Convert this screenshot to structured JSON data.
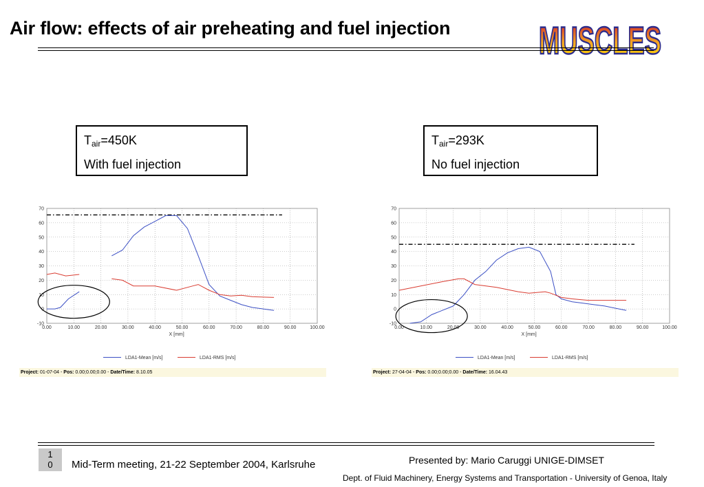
{
  "slide": {
    "title": "Air flow: effects of air preheating and fuel injection",
    "logo_text": "MUSCLES"
  },
  "conditions": [
    {
      "t_main": "T",
      "t_sub": "air",
      "t_value": "=450K",
      "note": "With fuel injection"
    },
    {
      "t_main": "T",
      "t_sub": "air",
      "t_value": "=293K",
      "note": "No fuel injection"
    }
  ],
  "chart_data": [
    {
      "type": "line",
      "xlabel": "X [mm]",
      "ylabel": "",
      "xlim": [
        0,
        100
      ],
      "ylim": [
        -10,
        70
      ],
      "x_ticks": [
        "0.00",
        "10.00",
        "20.00",
        "30.00",
        "40.00",
        "50.00",
        "60.00",
        "70.00",
        "80.00",
        "90.00",
        "100.00"
      ],
      "y_ticks": [
        "-10",
        "0",
        "10",
        "20",
        "30",
        "40",
        "50",
        "60",
        "70"
      ],
      "grid": true,
      "legend": "bottom",
      "series": [
        {
          "name": "LDA1-Mean [m/s]",
          "color": "#3b4fc4",
          "segments": [
            [
              [
                0,
                0
              ],
              [
                3,
                0
              ],
              [
                5,
                1
              ],
              [
                8,
                7
              ],
              [
                12,
                12
              ]
            ],
            [
              [
                24,
                37
              ],
              [
                28,
                41
              ],
              [
                32,
                51
              ],
              [
                36,
                57
              ],
              [
                40,
                61
              ],
              [
                44,
                65
              ],
              [
                48,
                65
              ],
              [
                52,
                56
              ],
              [
                56,
                37
              ],
              [
                60,
                17
              ],
              [
                64,
                9
              ],
              [
                68,
                6
              ],
              [
                72,
                3
              ],
              [
                76,
                1
              ],
              [
                80,
                0
              ],
              [
                84,
                -1
              ]
            ]
          ]
        },
        {
          "name": "LDA1-RMS [m/s]",
          "color": "#d93b30",
          "segments": [
            [
              [
                0,
                24
              ],
              [
                3,
                25
              ],
              [
                7,
                23
              ],
              [
                12,
                24
              ]
            ],
            [
              [
                24,
                21
              ],
              [
                28,
                20
              ],
              [
                32,
                16
              ],
              [
                40,
                16
              ],
              [
                48,
                13
              ],
              [
                54,
                16
              ],
              [
                56,
                17
              ],
              [
                60,
                13
              ],
              [
                64,
                10
              ],
              [
                68,
                9
              ],
              [
                72,
                9.5
              ],
              [
                76,
                8.5
              ],
              [
                84,
                8
              ]
            ]
          ]
        }
      ],
      "reference_line": {
        "y": 65.5,
        "x_range": [
          0,
          87
        ],
        "style": "dash-dot"
      },
      "highlight_ellipse_center": [
        10,
        5
      ],
      "project_bar": {
        "project_label": "Project:",
        "project_value": "01-07-04",
        "pos_label": "Pos:",
        "pos_value": "0.00;0.00;0.00",
        "dt_label": "Date/Time:",
        "dt_value": "8.10.05"
      }
    },
    {
      "type": "line",
      "xlabel": "X [mm]",
      "ylabel": "",
      "xlim": [
        0,
        100
      ],
      "ylim": [
        -10,
        70
      ],
      "x_ticks": [
        "0.00",
        "10.00",
        "20.00",
        "30.00",
        "40.00",
        "50.00",
        "60.00",
        "70.00",
        "80.00",
        "90.00",
        "100.00"
      ],
      "y_ticks": [
        "-10",
        "0",
        "10",
        "20",
        "30",
        "40",
        "50",
        "60",
        "70"
      ],
      "grid": true,
      "legend": "bottom",
      "series": [
        {
          "name": "LDA1-Mean [m/s]",
          "color": "#3b4fc4",
          "segments": [
            [
              [
                4,
                -10
              ],
              [
                8,
                -9
              ],
              [
                12,
                -4
              ],
              [
                16,
                -1
              ],
              [
                20,
                2
              ],
              [
                24,
                10
              ],
              [
                28,
                20
              ],
              [
                32,
                26
              ],
              [
                36,
                34
              ],
              [
                40,
                39
              ],
              [
                44,
                42
              ],
              [
                48,
                43
              ],
              [
                52,
                40
              ],
              [
                54,
                33
              ],
              [
                56,
                26
              ],
              [
                58,
                10
              ],
              [
                60,
                7
              ],
              [
                64,
                5
              ],
              [
                68,
                4
              ],
              [
                72,
                3
              ],
              [
                76,
                2
              ],
              [
                80,
                0.5
              ],
              [
                84,
                -1
              ]
            ]
          ]
        },
        {
          "name": "LDA1-RMS [m/s]",
          "color": "#d93b30",
          "segments": [
            [
              [
                0,
                13
              ],
              [
                8,
                16
              ],
              [
                16,
                19
              ],
              [
                22,
                21
              ],
              [
                24,
                21
              ],
              [
                28,
                17
              ],
              [
                36,
                15
              ],
              [
                44,
                12
              ],
              [
                48,
                11
              ],
              [
                54,
                12
              ],
              [
                56,
                11
              ],
              [
                60,
                8
              ],
              [
                64,
                7
              ],
              [
                70,
                6
              ],
              [
                80,
                6
              ],
              [
                84,
                6
              ]
            ]
          ]
        }
      ],
      "reference_line": {
        "y": 45,
        "x_range": [
          0,
          87
        ],
        "style": "dash-dot"
      },
      "highlight_ellipse_center": [
        12,
        -5
      ],
      "project_bar": {
        "project_label": "Project:",
        "project_value": "27-04-04",
        "pos_label": "Pos:",
        "pos_value": "0.00;0.00;0.00",
        "dt_label": "Date/Time:",
        "dt_value": "16.04.43"
      }
    }
  ],
  "footer": {
    "page_number": "10",
    "page_line1": "1",
    "page_line2": "0",
    "meeting": "Mid-Term meeting, 21-22 September 2004, Karlsruhe",
    "presenter": "Presented by: Mario Caruggi  UNIGE-DIMSET",
    "department": "Dept. of Fluid Machinery, Energy Systems and Transportation - University of Genoa, Italy"
  }
}
